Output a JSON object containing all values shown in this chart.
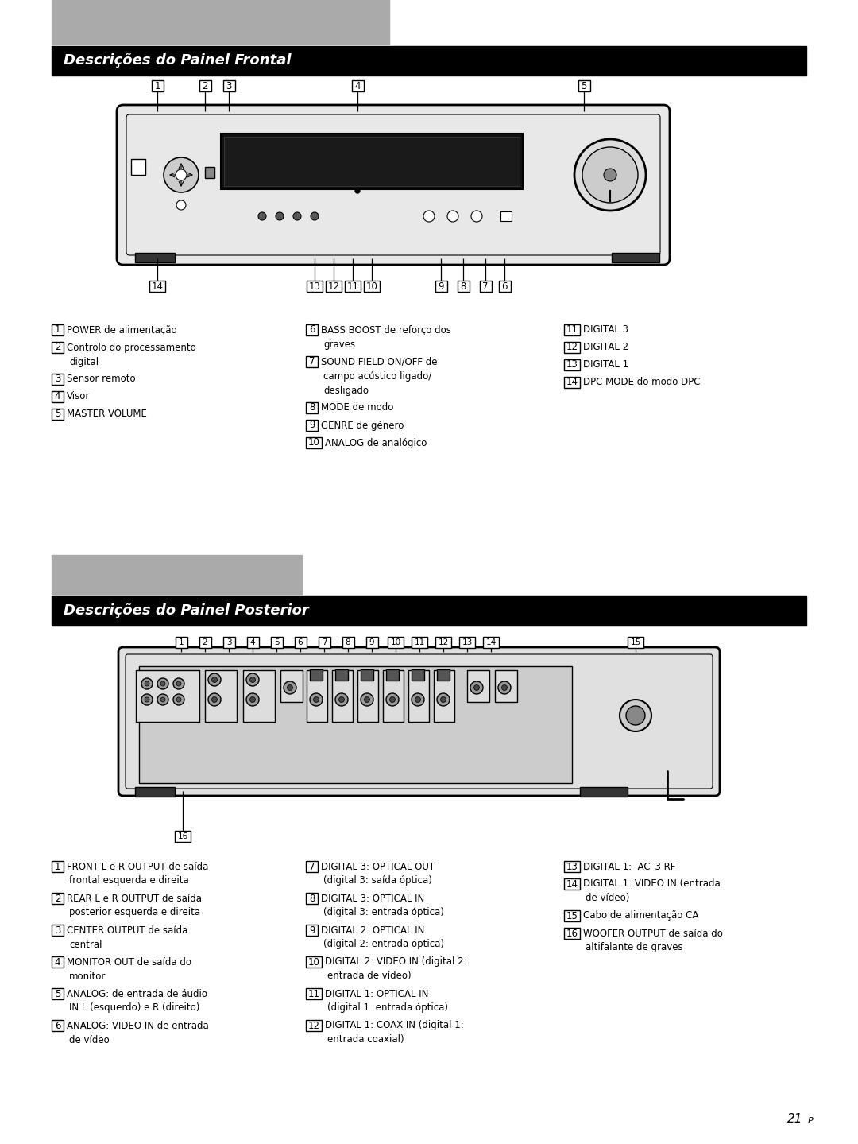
{
  "page_bg": "#ffffff",
  "header1_text": "Descrições do Painel Frontal",
  "header2_text": "Descrições do Painel Posterior",
  "header_bg": "#000000",
  "header_text_color": "#ffffff",
  "gray_box_color": "#aaaaaa",
  "page_number": "21",
  "front_labels_col1": [
    [
      "1",
      "POWER de alimentação",
      ""
    ],
    [
      "2",
      "Controlo do processamento",
      "digital"
    ],
    [
      "3",
      "Sensor remoto",
      ""
    ],
    [
      "4",
      "Visor",
      ""
    ],
    [
      "5",
      "MASTER VOLUME",
      ""
    ]
  ],
  "front_labels_col2": [
    [
      "6",
      "BASS BOOST de reforço dos",
      "graves"
    ],
    [
      "7",
      "SOUND FIELD ON/OFF de",
      "campo acústico ligado/",
      "desligado"
    ],
    [
      "8",
      "MODE de modo",
      ""
    ],
    [
      "9",
      "GENRE de género",
      ""
    ],
    [
      "10",
      "ANALOG de analógico",
      ""
    ]
  ],
  "front_labels_col3": [
    [
      "11",
      "DIGITAL 3",
      ""
    ],
    [
      "12",
      "DIGITAL 2",
      ""
    ],
    [
      "13",
      "DIGITAL 1",
      ""
    ],
    [
      "14",
      "DPC MODE do modo DPC",
      ""
    ]
  ],
  "rear_labels_col1": [
    [
      "1",
      "FRONT L e R OUTPUT de saída",
      "frontal esquerda e direita"
    ],
    [
      "2",
      "REAR L e R OUTPUT de saída",
      "posterior esquerda e direita"
    ],
    [
      "3",
      "CENTER OUTPUT de saída",
      "central"
    ],
    [
      "4",
      "MONITOR OUT de saída do",
      "monitor"
    ],
    [
      "5",
      "ANALOG: de entrada de áudio",
      "IN L (esquerdo) e R (direito)"
    ],
    [
      "6",
      "ANALOG: VIDEO IN de entrada",
      "de vídeo"
    ]
  ],
  "rear_labels_col2": [
    [
      "7",
      "DIGITAL 3: OPTICAL OUT",
      "(digital 3: saída óptica)"
    ],
    [
      "8",
      "DIGITAL 3: OPTICAL IN",
      "(digital 3: entrada óptica)"
    ],
    [
      "9",
      "DIGITAL 2: OPTICAL IN",
      "(digital 2: entrada óptica)"
    ],
    [
      "10",
      "DIGITAL 2: VIDEO IN (digital 2:",
      "entrada de vídeo)"
    ],
    [
      "11",
      "DIGITAL 1: OPTICAL IN",
      "(digital 1: entrada óptica)"
    ],
    [
      "12",
      "DIGITAL 1: COAX IN (digital 1:",
      "entrada coaxial)"
    ]
  ],
  "rear_labels_col3": [
    [
      "13",
      "DIGITAL 1:  AC–3 RF",
      ""
    ],
    [
      "14",
      "DIGITAL 1: VIDEO IN (entrada",
      "de vídeo)"
    ],
    [
      "15",
      "Cabo de alimentação CA",
      ""
    ],
    [
      "16",
      "WOOFER OUTPUT de saída do",
      "altifalante de graves"
    ]
  ]
}
